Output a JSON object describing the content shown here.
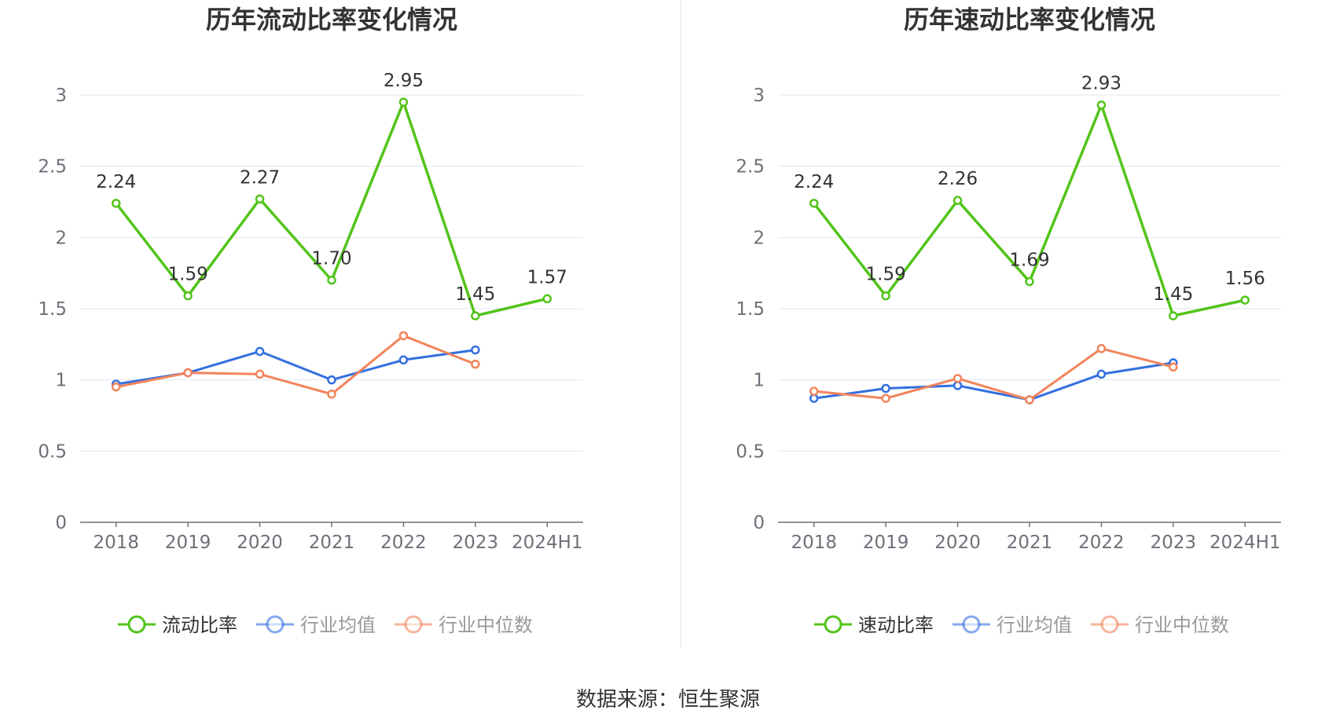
{
  "source_text": "数据来源：恒生聚源",
  "colors": {
    "main": "#52c41a",
    "avg": "#3370e0",
    "median": "#f2845c",
    "grid": "#e0e6f1",
    "axis": "#6e7079",
    "label": "#333333"
  },
  "chart_data": [
    {
      "type": "line",
      "title": "历年流动比率变化情况",
      "categories": [
        "2018",
        "2019",
        "2020",
        "2021",
        "2022",
        "2023",
        "2024H1"
      ],
      "ylim": [
        0,
        3
      ],
      "yticks": [
        "0",
        "0.5",
        "1",
        "1.5",
        "2",
        "2.5",
        "3"
      ],
      "series": [
        {
          "name": "流动比率",
          "values": [
            2.24,
            1.59,
            2.27,
            1.7,
            2.95,
            1.45,
            1.57
          ],
          "labels": [
            "2.24",
            "1.59",
            "2.27",
            "1.70",
            "2.95",
            "1.45",
            "1.57"
          ]
        },
        {
          "name": "行业均值",
          "values": [
            0.97,
            1.05,
            1.2,
            1.0,
            1.14,
            1.21,
            null
          ]
        },
        {
          "name": "行业中位数",
          "values": [
            0.95,
            1.05,
            1.04,
            0.9,
            1.31,
            1.11,
            null
          ]
        }
      ]
    },
    {
      "type": "line",
      "title": "历年速动比率变化情况",
      "categories": [
        "2018",
        "2019",
        "2020",
        "2021",
        "2022",
        "2023",
        "2024H1"
      ],
      "ylim": [
        0,
        3
      ],
      "yticks": [
        "0",
        "0.5",
        "1",
        "1.5",
        "2",
        "2.5",
        "3"
      ],
      "series": [
        {
          "name": "速动比率",
          "values": [
            2.24,
            1.59,
            2.26,
            1.69,
            2.93,
            1.45,
            1.56
          ],
          "labels": [
            "2.24",
            "1.59",
            "2.26",
            "1.69",
            "2.93",
            "1.45",
            "1.56"
          ]
        },
        {
          "name": "行业均值",
          "values": [
            0.87,
            0.94,
            0.96,
            0.86,
            1.04,
            1.12,
            null
          ]
        },
        {
          "name": "行业中位数",
          "values": [
            0.92,
            0.87,
            1.01,
            0.86,
            1.22,
            1.09,
            null
          ]
        }
      ]
    }
  ]
}
